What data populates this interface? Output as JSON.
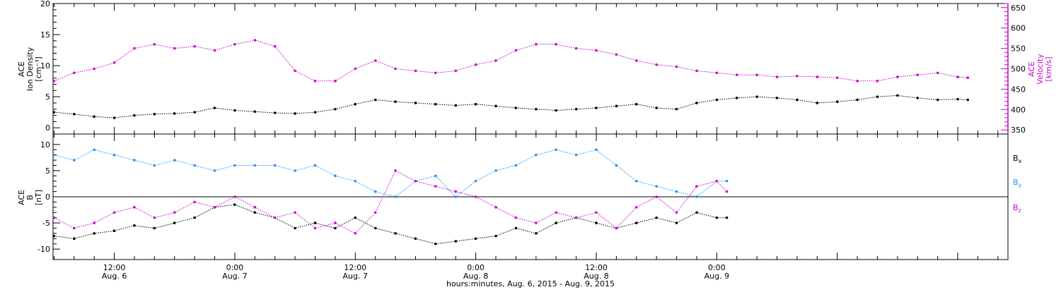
{
  "colors": {
    "black": "#000000",
    "magenta": "#cc00cc",
    "blue": "#1e90ff"
  },
  "chart_data": [
    {
      "type": "scatter",
      "panel": "top",
      "ylabel": [
        "ACE",
        "Ion Density",
        "[cm⁻³]"
      ],
      "ylim": [
        -1,
        20
      ],
      "yticks": [
        "0",
        "5",
        "10",
        "15",
        "20"
      ],
      "y2label": [
        "ACE",
        "Velocity",
        "[km/s]"
      ],
      "y2lim": [
        340,
        660
      ],
      "y2ticks": [
        "350",
        "400",
        "450",
        "500",
        "550",
        "600",
        "650"
      ],
      "x_unit": "hours since 2015-08-06 00:00",
      "xlim": [
        5.9,
        101
      ],
      "series": [
        {
          "axis": "left",
          "color": "#000000",
          "x": [
            6,
            8,
            10,
            12,
            14,
            16,
            18,
            20,
            22,
            24,
            26,
            28,
            30,
            32,
            34,
            36,
            38,
            40,
            42,
            44,
            46,
            48,
            50,
            52,
            54,
            56,
            58,
            60,
            62,
            64,
            66,
            68,
            70,
            72,
            74,
            76,
            78,
            80,
            82,
            84,
            86,
            88,
            90,
            92,
            94,
            96,
            97
          ],
          "values": [
            2.5,
            2.2,
            1.8,
            1.6,
            2.0,
            2.2,
            2.3,
            2.5,
            3.2,
            2.8,
            2.6,
            2.4,
            2.3,
            2.5,
            3.0,
            3.8,
            4.5,
            4.2,
            4.0,
            3.8,
            3.6,
            3.8,
            3.5,
            3.2,
            3.0,
            2.8,
            3.0,
            3.2,
            3.5,
            3.8,
            3.2,
            3.0,
            4.0,
            4.5,
            4.8,
            5.0,
            4.8,
            4.5,
            4.0,
            4.2,
            4.5,
            5.0,
            5.2,
            4.8,
            4.5,
            4.6,
            4.5
          ]
        },
        {
          "axis": "right",
          "color": "#cc00cc",
          "x": [
            6,
            8,
            10,
            12,
            14,
            16,
            18,
            20,
            22,
            24,
            26,
            28,
            30,
            32,
            34,
            36,
            38,
            40,
            42,
            44,
            46,
            48,
            50,
            52,
            54,
            56,
            58,
            60,
            62,
            64,
            66,
            68,
            70,
            72,
            74,
            76,
            78,
            80,
            82,
            84,
            86,
            88,
            90,
            92,
            94,
            96,
            97
          ],
          "values": [
            470,
            490,
            500,
            515,
            550,
            560,
            550,
            555,
            545,
            560,
            570,
            555,
            495,
            470,
            470,
            500,
            520,
            500,
            495,
            490,
            495,
            510,
            520,
            545,
            560,
            560,
            550,
            545,
            535,
            520,
            510,
            505,
            495,
            490,
            485,
            485,
            480,
            482,
            480,
            478,
            470,
            470,
            480,
            485,
            490,
            480,
            478
          ]
        }
      ]
    },
    {
      "type": "scatter",
      "panel": "bottom",
      "ylabel": [
        "ACE",
        "B",
        "[nT]"
      ],
      "ylim": [
        -12,
        12
      ],
      "yticks": [
        "-10",
        "-5",
        "0",
        "5",
        "10"
      ],
      "hline": 0,
      "x_unit": "hours since 2015-08-06 00:00",
      "xlim": [
        5.9,
        101
      ],
      "xtick_labels": [
        {
          "time": "12:00",
          "date": "Aug. 6",
          "x": 12
        },
        {
          "time": "0:00",
          "date": "Aug. 7",
          "x": 24
        },
        {
          "time": "12:00",
          "date": "Aug. 7",
          "x": 36
        },
        {
          "time": "0:00",
          "date": "Aug. 8",
          "x": 48
        },
        {
          "time": "12:00",
          "date": "Aug. 8",
          "x": 60
        },
        {
          "time": "0:00",
          "date": "Aug. 9",
          "x": 72
        }
      ],
      "xlabel": "hours:minutes, Aug.  6, 2015 - Aug.  9, 2015",
      "legend": "right",
      "series": [
        {
          "name": "B",
          "sub": "x",
          "color": "#000000",
          "x": [
            6,
            8,
            10,
            12,
            14,
            16,
            18,
            20,
            22,
            24,
            26,
            28,
            30,
            32,
            34,
            36,
            38,
            40,
            42,
            44,
            46,
            48,
            50,
            52,
            54,
            56,
            58,
            60,
            62,
            64,
            66,
            68,
            70,
            72,
            73
          ],
          "values": [
            -7.5,
            -8,
            -7,
            -6.5,
            -5.5,
            -6,
            -5,
            -4,
            -2,
            -1.5,
            -3,
            -4,
            -6,
            -5,
            -6,
            -4,
            -6,
            -7,
            -8,
            -9,
            -8.5,
            -8,
            -7.5,
            -6,
            -7,
            -5,
            -4,
            -5,
            -6,
            -5,
            -4,
            -5,
            -3,
            -4,
            -4
          ]
        },
        {
          "name": "B",
          "sub": "y",
          "color": "#1e90ff",
          "x": [
            6,
            8,
            10,
            12,
            14,
            16,
            18,
            20,
            22,
            24,
            26,
            28,
            30,
            32,
            34,
            36,
            38,
            40,
            42,
            44,
            46,
            48,
            50,
            52,
            54,
            56,
            58,
            60,
            62,
            64,
            66,
            68,
            70,
            72,
            73
          ],
          "values": [
            8,
            7,
            9,
            8,
            7,
            6,
            7,
            6,
            5,
            6,
            6,
            6,
            5,
            6,
            4,
            3,
            1,
            0,
            3,
            4,
            0,
            3,
            5,
            6,
            8,
            9,
            8,
            9,
            6,
            3,
            2,
            1,
            0,
            3,
            3
          ]
        },
        {
          "name": "B",
          "sub": "z",
          "color": "#cc00cc",
          "x": [
            6,
            8,
            10,
            12,
            14,
            16,
            18,
            20,
            22,
            24,
            26,
            28,
            30,
            32,
            34,
            36,
            38,
            40,
            42,
            44,
            46,
            48,
            50,
            52,
            54,
            56,
            58,
            60,
            62,
            64,
            66,
            68,
            70,
            72,
            73
          ],
          "values": [
            -4,
            -6,
            -5,
            -3,
            -2,
            -4,
            -3,
            -1,
            -2,
            0,
            -2,
            -4,
            -3,
            -6,
            -5,
            -7,
            -3,
            5,
            3,
            2,
            1,
            0,
            -2,
            -4,
            -5,
            -3,
            -4,
            -3,
            -6,
            -2,
            0,
            -3,
            2,
            3,
            1
          ]
        }
      ]
    }
  ]
}
